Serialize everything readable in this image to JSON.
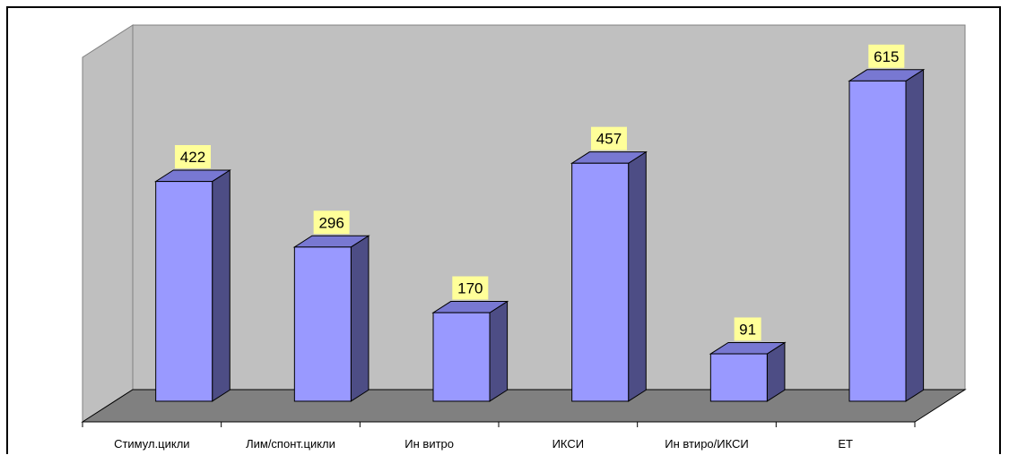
{
  "chart_data": {
    "type": "bar",
    "title": "",
    "xlabel": "",
    "ylabel": "",
    "categories": [
      "Стимул.цикли",
      "Лим/спонт.цикли",
      "Ин витро",
      "ИКСИ",
      "Ин втиро/ИКСИ",
      "ЕТ"
    ],
    "values": [
      422,
      296,
      170,
      457,
      91,
      615
    ],
    "data_labels": [
      "422",
      "296",
      "170",
      "457",
      "91",
      "615"
    ],
    "ylim": [
      0,
      700
    ],
    "grid": false,
    "legend": "none",
    "style": "3d-column",
    "colors": {
      "bar_front": "#9999ff",
      "bar_side": "#4d4d85",
      "bar_top": "#7878d2",
      "back_wall": "#c0c0c0",
      "side_wall": "#bfbfbf",
      "floor": "#808080",
      "label_bg": "#ffff99"
    }
  }
}
